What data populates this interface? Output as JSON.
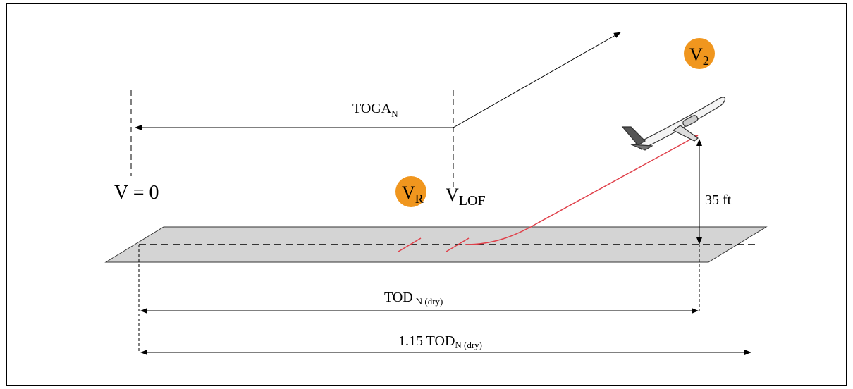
{
  "labels": {
    "toga": {
      "main": "TOGA",
      "sub": "N"
    },
    "v_zero": "V = 0",
    "v_r": {
      "main": "V",
      "sub": "R"
    },
    "v_lof": {
      "main": "V",
      "sub": "LOF"
    },
    "v_2": {
      "main": "V",
      "sub": "2"
    },
    "screen_height": "35 ft",
    "tod": {
      "main": "TOD",
      "sub": "N (dry)"
    },
    "tod_factored": {
      "main": "1.15 TOD",
      "sub": "N (dry)"
    }
  }
}
